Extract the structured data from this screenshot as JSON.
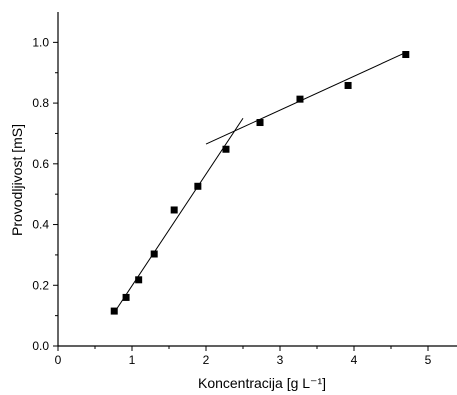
{
  "chart_data": {
    "type": "scatter",
    "title": "",
    "xlabel": "Koncentracija [g L⁻¹]",
    "ylabel": "Provodljivost [mS]",
    "xlim": [
      0,
      5.4
    ],
    "ylim": [
      0,
      1.1
    ],
    "x_ticks": [
      0,
      1,
      2,
      3,
      4,
      5
    ],
    "x_tick_labels": [
      "0",
      "1",
      "2",
      "3",
      "4",
      "5"
    ],
    "y_ticks": [
      0.0,
      0.2,
      0.4,
      0.6,
      0.8,
      1.0
    ],
    "y_tick_labels": [
      "0.0",
      "0.2",
      "0.4",
      "0.6",
      "0.8",
      "1.0"
    ],
    "grid": false,
    "series": [
      {
        "marker": "square",
        "color": "#000000",
        "points": [
          {
            "x": 0.76,
            "y": 0.115
          },
          {
            "x": 0.92,
            "y": 0.16
          },
          {
            "x": 1.09,
            "y": 0.218
          },
          {
            "x": 1.3,
            "y": 0.303
          },
          {
            "x": 1.57,
            "y": 0.448
          },
          {
            "x": 1.89,
            "y": 0.526
          },
          {
            "x": 2.27,
            "y": 0.648
          },
          {
            "x": 2.73,
            "y": 0.736
          },
          {
            "x": 3.27,
            "y": 0.813
          },
          {
            "x": 3.92,
            "y": 0.858
          },
          {
            "x": 4.7,
            "y": 0.96
          }
        ]
      }
    ],
    "fit_lines": [
      {
        "x": [
          0.76,
          2.5
        ],
        "y": [
          0.11,
          0.75
        ]
      },
      {
        "x": [
          2.0,
          4.73
        ],
        "y": [
          0.665,
          0.97
        ]
      }
    ]
  }
}
